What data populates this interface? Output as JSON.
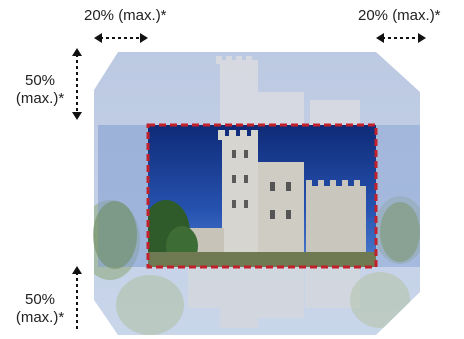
{
  "labels": {
    "left_top": "20% (max.)*",
    "right_top": "20% (max.)*",
    "upper_left_pct": "50%",
    "upper_left_max": "(max.)*",
    "lower_left_pct": "50%",
    "lower_left_max": "(max.)*"
  },
  "colors": {
    "sky": "#1b3b8c",
    "dashed_frame": "#c2202a",
    "arrow": "#111111"
  },
  "icons": [
    "double-arrow-horizontal-icon",
    "up-arrow-icon",
    "down-arrow-icon"
  ]
}
